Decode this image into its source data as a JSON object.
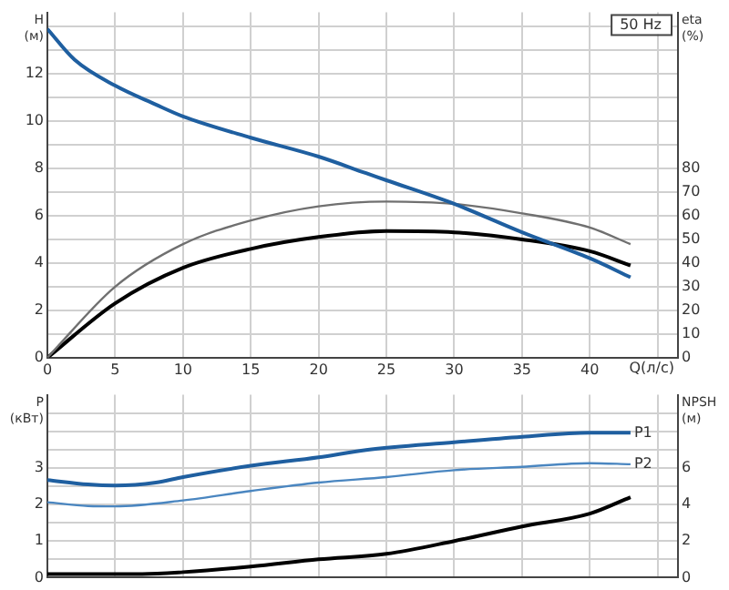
{
  "chart_data": [
    {
      "type": "line",
      "annotations": [
        "50 Hz"
      ],
      "xlabel": "Q(л/с)",
      "ylabel": "H (м)",
      "y2label": "eta (%)",
      "xlim": [
        0,
        46.5
      ],
      "xticks": [
        0,
        5,
        10,
        15,
        20,
        25,
        30,
        35,
        40,
        {
          "value": 45,
          "label": null
        }
      ],
      "ylim": [
        0,
        14.6
      ],
      "yticks": [
        0,
        {
          "value": 1,
          "label": null
        },
        2,
        {
          "value": 3,
          "label": null
        },
        4,
        {
          "value": 5,
          "label": null
        },
        6,
        {
          "value": 7,
          "label": null
        },
        8,
        {
          "value": 9,
          "label": null
        },
        10,
        {
          "value": 11,
          "label": null
        },
        12,
        {
          "value": 13,
          "label": null
        },
        {
          "value": 14,
          "label": null
        }
      ],
      "y2lim": [
        0,
        146
      ],
      "y2ticks": [
        0,
        10,
        20,
        30,
        40,
        50,
        60,
        70,
        80
      ],
      "grid": true,
      "legend": false,
      "marker": "none",
      "line_style": "solid",
      "series": [
        {
          "color": "#1f5fa0",
          "x": [
            0,
            2,
            5,
            8,
            10,
            15,
            20,
            23.5,
            25,
            30,
            35,
            40,
            43
          ],
          "values": [
            13.9,
            12.6,
            11.5,
            10.7,
            10.2,
            9.3,
            8.5,
            7.8,
            7.5,
            6.5,
            5.3,
            4.2,
            3.4
          ]
        },
        {
          "color": "#707070",
          "axis": "y2",
          "x": [
            0,
            5,
            10,
            15,
            20,
            25,
            30,
            35,
            40,
            43
          ],
          "values": [
            0,
            30,
            48,
            58,
            64,
            66,
            65,
            61,
            55,
            48
          ]
        },
        {
          "color": "#000000",
          "axis": "y2",
          "x": [
            0,
            5,
            10,
            15,
            20,
            25,
            30,
            35,
            40,
            43
          ],
          "values": [
            0,
            23,
            38,
            46,
            51,
            53.5,
            53,
            50,
            45,
            39
          ]
        }
      ]
    },
    {
      "type": "line",
      "ylabel": "P (кВт)",
      "y2label": "NPSH (м)",
      "tick_labels": "y",
      "xlim": [
        0,
        46.5
      ],
      "xticks": [
        0,
        5,
        10,
        15,
        20,
        25,
        30,
        35,
        40,
        45
      ],
      "ylim": [
        0,
        5
      ],
      "yticks": [
        0,
        {
          "value": 0.5,
          "label": null
        },
        1,
        {
          "value": 1.5,
          "label": null
        },
        2,
        {
          "value": 2.5,
          "label": null
        },
        3,
        {
          "value": 3.5,
          "label": null
        },
        {
          "value": 4,
          "label": null
        },
        {
          "value": 4.5,
          "label": null
        }
      ],
      "y2lim": [
        0,
        10
      ],
      "y2ticks": [
        0,
        2,
        4,
        6
      ],
      "grid": true,
      "legend": false,
      "marker": "none",
      "line_style": "solid",
      "series": [
        {
          "name": "P1",
          "color": "#1f5fa0",
          "x": [
            0,
            3,
            5,
            8,
            10,
            15,
            20,
            23.5,
            30,
            35,
            40,
            43
          ],
          "values": [
            2.67,
            2.55,
            2.52,
            2.6,
            2.75,
            3.06,
            3.29,
            3.49,
            3.7,
            3.85,
            3.96,
            3.96
          ]
        },
        {
          "name": "P2",
          "color": "#4a86c0",
          "x": [
            0,
            3,
            5,
            10,
            15,
            20,
            25,
            30,
            35,
            40,
            43
          ],
          "values": [
            2.06,
            1.96,
            1.95,
            2.11,
            2.37,
            2.6,
            2.75,
            2.94,
            3.03,
            3.13,
            3.1
          ]
        },
        {
          "color": "#000000",
          "axis": "y2",
          "x": [
            0,
            7,
            10,
            15,
            20,
            25,
            30,
            35,
            40,
            43
          ],
          "values": [
            0.2,
            0.2,
            0.3,
            0.6,
            1.0,
            1.3,
            2.0,
            2.8,
            3.5,
            4.4
          ]
        }
      ]
    }
  ]
}
